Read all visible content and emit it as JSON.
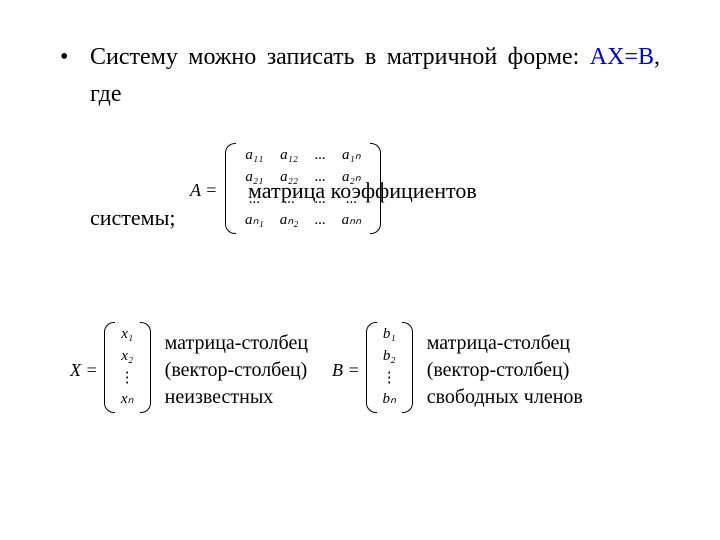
{
  "colors": {
    "text": "#000000",
    "background": "#ffffff",
    "equation": "#0000cc"
  },
  "typography": {
    "body_font": "Times New Roman",
    "body_size_pt": 18,
    "matrix_size_pt": 11
  },
  "bullet": {
    "marker": "•",
    "line1_prefix": "Систему можно записать в матричной форме:",
    "equation": "АХ=В",
    "comma": ","
  },
  "gde": "где",
  "matrix_A": {
    "lead": "A =",
    "rows": [
      [
        "a₁₁",
        "a₁₂",
        "...",
        "a₁ₙ"
      ],
      [
        "a₂₁",
        "a₂₂",
        "...",
        "a₂ₙ"
      ],
      [
        "...",
        "...",
        "...",
        "..."
      ],
      [
        "aₙ₁",
        "aₙ₂",
        "...",
        "aₙₙ"
      ]
    ],
    "overlay_right": "матрица коэффициентов",
    "overlay_below": "системы;"
  },
  "matrix_X": {
    "lead": "X =",
    "rows": [
      "x₁",
      "x₂",
      "⋮",
      "xₙ"
    ],
    "desc_l1": "матрица-столбец",
    "desc_l2": "(вектор-столбец)",
    "desc_l3": "неизвестных"
  },
  "matrix_B": {
    "lead": "B =",
    "rows": [
      "b₁",
      "b₂",
      "⋮",
      "bₙ"
    ],
    "desc_l1": "матрица-столбец",
    "desc_l2": "(вектор-столбец)",
    "desc_l3": "свободных членов"
  }
}
